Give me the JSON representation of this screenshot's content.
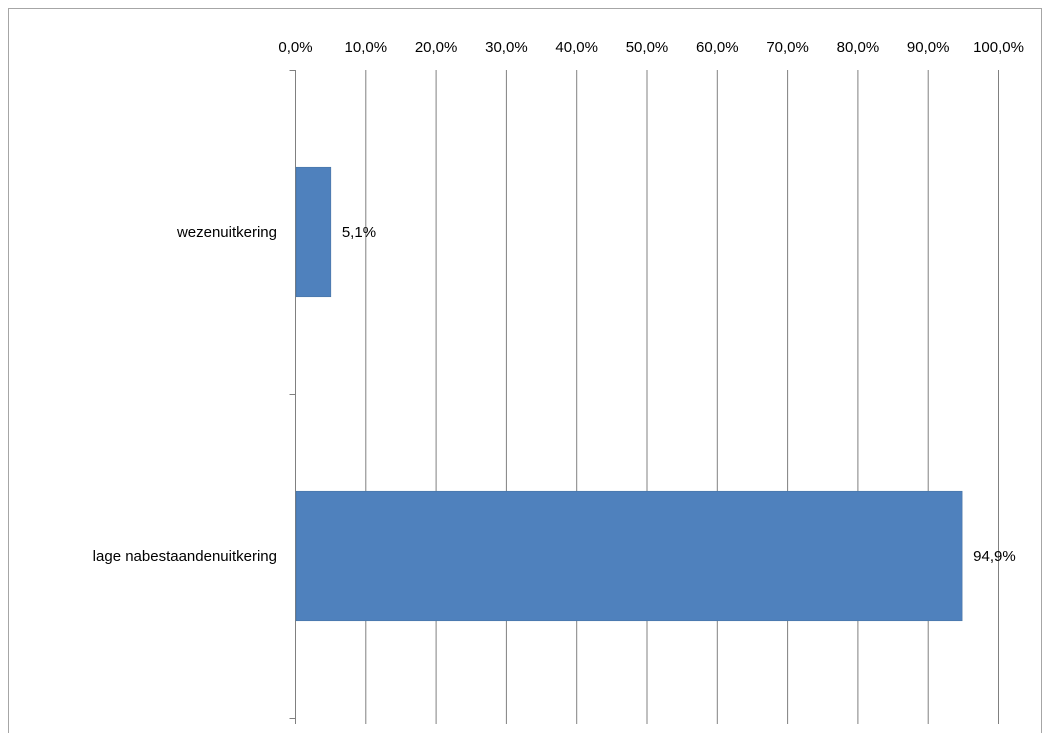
{
  "chart_data": {
    "type": "bar",
    "orientation": "horizontal",
    "categories": [
      "wezenuitkering",
      "lage nabestaandenuitkering"
    ],
    "values": [
      5.1,
      94.9
    ],
    "data_labels": [
      "5,1%",
      "94,9%"
    ],
    "title": "",
    "xlabel": "",
    "ylabel": "",
    "xlim": [
      0,
      100
    ],
    "x_ticks": [
      0,
      10,
      20,
      30,
      40,
      50,
      60,
      70,
      80,
      90,
      100
    ],
    "x_tick_labels": [
      "0,0%",
      "10,0%",
      "20,0%",
      "30,0%",
      "40,0%",
      "50,0%",
      "60,0%",
      "70,0%",
      "80,0%",
      "90,0%",
      "100,0%"
    ],
    "x_axis_position": "top",
    "grid": true,
    "legend": "none",
    "colors": {
      "bar": "#4f81bd",
      "bar_stroke": "#3f6d9e",
      "grid": "#808080",
      "axis": "#808080",
      "frame": "#a6a6a6"
    }
  }
}
